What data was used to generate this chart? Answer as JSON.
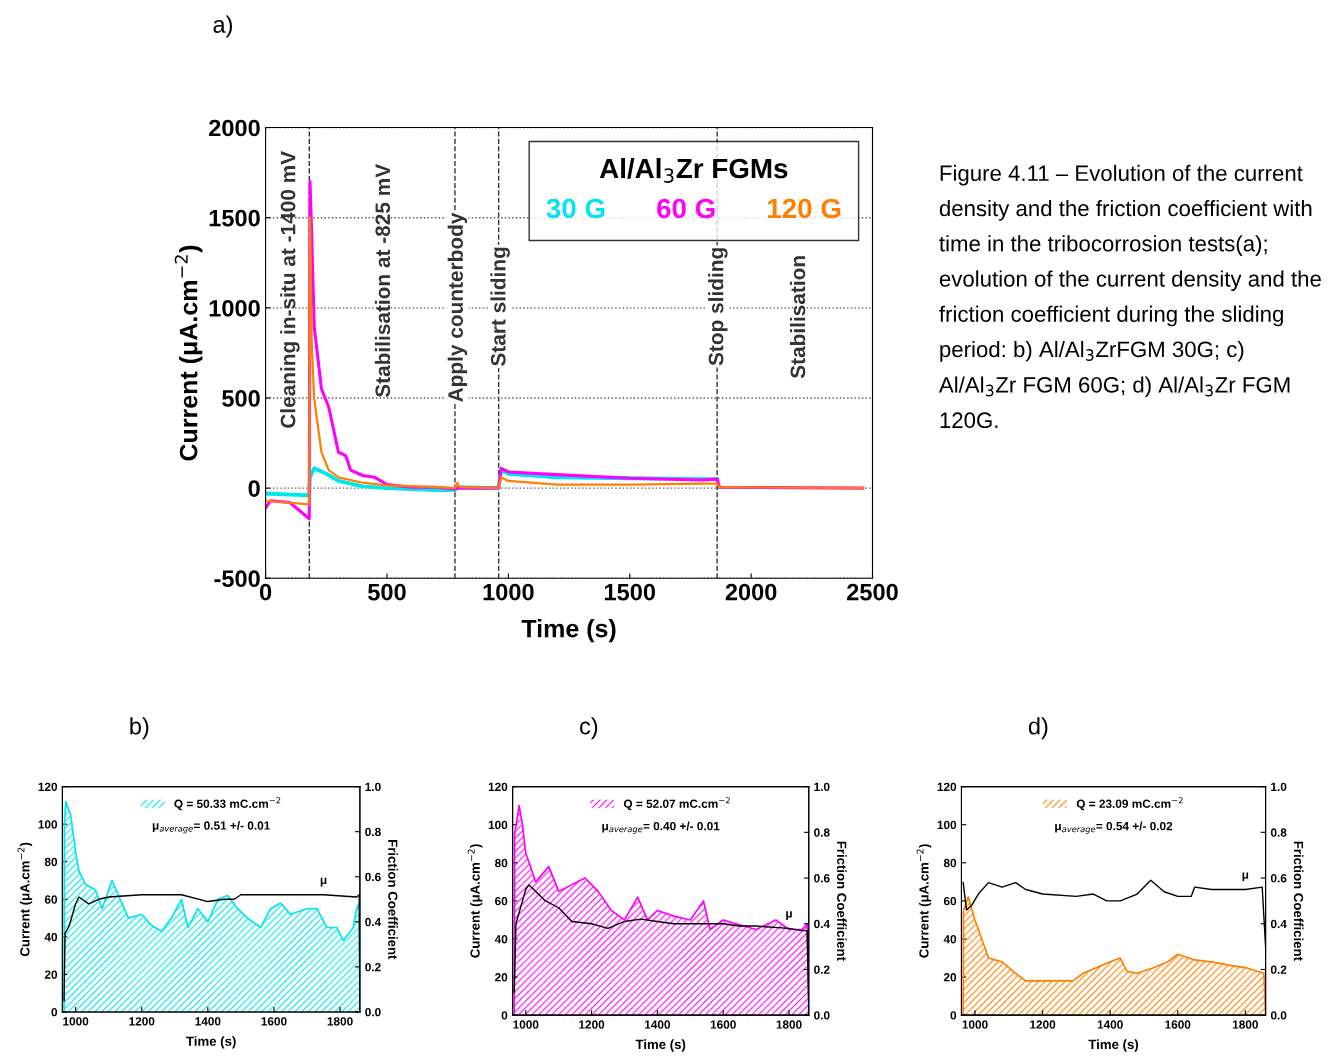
{
  "chart_data": [
    {
      "type": "line",
      "xlabel": "Time (s)",
      "ylabel": "Current (μA.cm$^{−2}$)",
      "xlim": [
        0,
        2500
      ],
      "xticks": [
        0,
        500,
        1000,
        1500,
        2000,
        2500
      ],
      "ylim": [
        -500,
        2000
      ],
      "yticks": [
        -500,
        0,
        500,
        1000,
        1500,
        2000
      ],
      "grid": "y",
      "legend": "top right",
      "legend_title": "Al/Al$_{3}$Zr FGMs",
      "series": [
        {
          "name": "30 G",
          "color": "#00e5ee",
          "x": [
            0,
            180,
            182,
            200,
            250,
            300,
            400,
            500,
            600,
            700,
            780,
            790,
            960,
            970,
            1000,
            1200,
            1500,
            1800,
            1860
          ],
          "values": [
            -30,
            -40,
            60,
            110,
            80,
            40,
            10,
            0,
            -5,
            -10,
            -10,
            5,
            0,
            100,
            80,
            60,
            55,
            50,
            50
          ]
        },
        {
          "name": "60 G",
          "color": "#ff00ff",
          "x": [
            0,
            20,
            100,
            180,
            183,
            190,
            200,
            230,
            260,
            300,
            330,
            350,
            400,
            450,
            500,
            600,
            700,
            780,
            790,
            960,
            970,
            1000,
            1200,
            1500,
            1800,
            1860,
            1870,
            2460
          ],
          "values": [
            -110,
            -70,
            -80,
            -170,
            1700,
            1400,
            900,
            550,
            450,
            200,
            180,
            100,
            70,
            60,
            20,
            5,
            5,
            -5,
            0,
            0,
            110,
            90,
            75,
            55,
            45,
            50,
            5,
            0
          ]
        },
        {
          "name": "120 G",
          "color": "#ff8000",
          "x": [
            0,
            180,
            183,
            190,
            200,
            230,
            260,
            300,
            400,
            500,
            700,
            780,
            790,
            800,
            960,
            970,
            1000,
            1200,
            1500,
            1800,
            1860,
            1870,
            2460
          ],
          "values": [
            -70,
            -90,
            1500,
            800,
            500,
            200,
            100,
            60,
            30,
            15,
            5,
            0,
            30,
            5,
            0,
            60,
            40,
            20,
            20,
            25,
            25,
            5,
            0
          ]
        }
      ],
      "ref_lines": [
        {
          "axis": "x",
          "value": 180,
          "line_style": "dashed",
          "color": "#333333"
        },
        {
          "axis": "x",
          "value": 780,
          "line_style": "dashed",
          "color": "#333333"
        },
        {
          "axis": "x",
          "value": 960,
          "line_style": "dashed",
          "color": "#333333"
        },
        {
          "axis": "x",
          "value": 1860,
          "line_style": "dashed",
          "color": "#333333"
        }
      ],
      "annotations": [
        {
          "text": "Apply counterbody",
          "x": 790,
          "y": 1002
        },
        {
          "text": "Start sliding",
          "x": 966,
          "y": 1008
        },
        {
          "text": "Stop sliding",
          "x": 1863,
          "y": 1008
        },
        "Cleaning in-situ at -1400 mV",
        "Stabilisation at -825 mV",
        "Stabilisation",
        "a)",
        "Figure 4.11 – Evolution of the current density and the friction coefficient with time in the tribocorrosion tests(a); evolution of the current density and the friction coefficient during the sliding period: b) Al/Al$_{3}$ZrFGM 30G; c) Al/Al$_{3}$Zr FGM 60G; d) Al/Al$_{3}$Zr FGM 120G."
      ]
    },
    {
      "type": "area",
      "xlabel": "Time (s)",
      "ylabel": "Current (μA.cm$^{−2}$)",
      "y2label": "Friction Coefficient",
      "xlim": [
        960,
        1860
      ],
      "xticks": [
        1000,
        1200,
        1400,
        1600,
        1800
      ],
      "ylim": [
        0,
        120
      ],
      "yticks": [
        0,
        20,
        40,
        60,
        80,
        100,
        120
      ],
      "y2lim": [
        0,
        1
      ],
      "y2ticks": [
        {
          "value": 0,
          "label": "0.0"
        },
        {
          "value": 0.2,
          "label": "0.2"
        },
        {
          "value": 0.4,
          "label": "0.4"
        },
        {
          "value": 0.6,
          "label": "0.6"
        },
        {
          "value": 0.8,
          "label": "0.8"
        },
        {
          "value": 1,
          "label": "1.0"
        }
      ],
      "legend": "top",
      "series": [
        {
          "type": "area",
          "name": "Q = 50.33 mC.cm$^{−2}$",
          "color": "#00e5ee",
          "x": [
            965,
            966,
            970,
            985,
            1000,
            1010,
            1030,
            1060,
            1080,
            1100,
            1110,
            1130,
            1160,
            1200,
            1230,
            1260,
            1290,
            1320,
            1340,
            1370,
            1400,
            1430,
            1460,
            1490,
            1520,
            1560,
            1590,
            1620,
            1650,
            1700,
            1730,
            1760,
            1790,
            1810,
            1840,
            1850,
            1858,
            1860
          ],
          "values": [
            0,
            100,
            112,
            105,
            85,
            75,
            68,
            65,
            55,
            65,
            70,
            62,
            50,
            52,
            46,
            43,
            50,
            60,
            45,
            55,
            48,
            60,
            62,
            55,
            50,
            45,
            55,
            58,
            52,
            55,
            55,
            45,
            45,
            38,
            45,
            55,
            58,
            0
          ]
        },
        {
          "type": "line",
          "axis": "y2",
          "name": "μ",
          "color": "#000000",
          "x": [
            965,
            968,
            980,
            1000,
            1010,
            1040,
            1070,
            1100,
            1200,
            1320,
            1400,
            1450,
            1480,
            1500,
            1700,
            1750,
            1850,
            1858,
            1860
          ],
          "values": [
            0.05,
            0.35,
            0.38,
            0.48,
            0.51,
            0.48,
            0.5,
            0.51,
            0.52,
            0.52,
            0.49,
            0.5,
            0.5,
            0.52,
            0.52,
            0.52,
            0.51,
            0.52,
            0.05
          ]
        }
      ],
      "annotations": [
        "μ$_{average}$= 0.51 +/- 0.01",
        "b)"
      ]
    },
    {
      "type": "area",
      "xlabel": "Time (s)",
      "ylabel": "Current (μA.cm$^{−2}$)",
      "y2label": "Friction Coefficient",
      "xlim": [
        960,
        1860
      ],
      "xticks": [
        1000,
        1200,
        1400,
        1600,
        1800
      ],
      "ylim": [
        0,
        120
      ],
      "yticks": [
        0,
        20,
        40,
        60,
        80,
        100,
        120
      ],
      "y2lim": [
        0,
        1
      ],
      "y2ticks": [
        {
          "value": 0,
          "label": "0.0"
        },
        {
          "value": 0.2,
          "label": "0.2"
        },
        {
          "value": 0.4,
          "label": "0.4"
        },
        {
          "value": 0.6,
          "label": "0.6"
        },
        {
          "value": 0.8,
          "label": "0.8"
        },
        {
          "value": 1,
          "label": "1.0"
        }
      ],
      "legend": "top",
      "series": [
        {
          "type": "area",
          "name": "Q = 52.07 mC.cm$^{−2}$",
          "color": "#ff00ff",
          "x": [
            965,
            966,
            980,
            990,
            1000,
            1030,
            1070,
            1100,
            1180,
            1220,
            1260,
            1300,
            1340,
            1370,
            1400,
            1450,
            1500,
            1540,
            1560,
            1600,
            1700,
            1760,
            1800,
            1840,
            1855,
            1860
          ],
          "values": [
            0,
            95,
            110,
            100,
            85,
            70,
            78,
            65,
            72,
            65,
            55,
            50,
            62,
            50,
            55,
            52,
            50,
            60,
            45,
            50,
            45,
            50,
            45,
            45,
            48,
            0
          ]
        },
        {
          "type": "line",
          "axis": "y2",
          "name": "μ",
          "color": "#000000",
          "x": [
            965,
            970,
            1000,
            1010,
            1060,
            1100,
            1140,
            1200,
            1250,
            1300,
            1350,
            1400,
            1450,
            1500,
            1600,
            1650,
            1700,
            1800,
            1840,
            1855,
            1860
          ],
          "values": [
            0.1,
            0.4,
            0.55,
            0.57,
            0.5,
            0.47,
            0.41,
            0.4,
            0.38,
            0.41,
            0.42,
            0.41,
            0.4,
            0.4,
            0.4,
            0.39,
            0.39,
            0.38,
            0.37,
            0.37,
            0.05
          ]
        }
      ],
      "annotations": [
        "μ$_{average}$= 0.40 +/- 0.01",
        "c)"
      ]
    },
    {
      "type": "area",
      "xlabel": "Time (s)",
      "ylabel": "Current (μA.cm$^{−2}$)",
      "y2label": "Friction Coefficient",
      "xlim": [
        960,
        1860
      ],
      "xticks": [
        1000,
        1200,
        1400,
        1600,
        1800
      ],
      "ylim": [
        0,
        120
      ],
      "yticks": [
        0,
        20,
        40,
        60,
        80,
        100,
        120
      ],
      "y2lim": [
        0,
        1
      ],
      "y2ticks": [
        {
          "value": 0,
          "label": "0.0"
        },
        {
          "value": 0.2,
          "label": "0.2"
        },
        {
          "value": 0.4,
          "label": "0.4"
        },
        {
          "value": 0.6,
          "label": "0.6"
        },
        {
          "value": 0.8,
          "label": "0.8"
        },
        {
          "value": 1,
          "label": "1.0"
        }
      ],
      "legend": "top",
      "series": [
        {
          "type": "area",
          "name": "Q = 23.09 mC.cm$^{−2}$",
          "color": "#ff8000",
          "x": [
            965,
            966,
            980,
            1000,
            1020,
            1040,
            1080,
            1120,
            1150,
            1250,
            1290,
            1320,
            1400,
            1430,
            1450,
            1480,
            1530,
            1570,
            1600,
            1650,
            1700,
            1760,
            1800,
            1855,
            1860
          ],
          "values": [
            0,
            55,
            62,
            50,
            40,
            30,
            28,
            22,
            18,
            18,
            18,
            22,
            28,
            30,
            23,
            22,
            25,
            28,
            32,
            29,
            28,
            26,
            25,
            22,
            0
          ]
        },
        {
          "type": "line",
          "axis": "y2",
          "name": "μ",
          "color": "#000000",
          "x": [
            965,
            975,
            990,
            1010,
            1040,
            1080,
            1120,
            1150,
            1200,
            1300,
            1350,
            1390,
            1430,
            1480,
            1520,
            1560,
            1600,
            1640,
            1650,
            1700,
            1800,
            1850,
            1860
          ],
          "values": [
            0.58,
            0.46,
            0.48,
            0.53,
            0.58,
            0.56,
            0.58,
            0.55,
            0.53,
            0.52,
            0.53,
            0.5,
            0.5,
            0.53,
            0.59,
            0.54,
            0.52,
            0.52,
            0.56,
            0.55,
            0.55,
            0.56,
            0.3
          ]
        }
      ],
      "annotations": [
        "μ$_{average}$= 0.54 +/- 0.02",
        "d)"
      ]
    }
  ]
}
